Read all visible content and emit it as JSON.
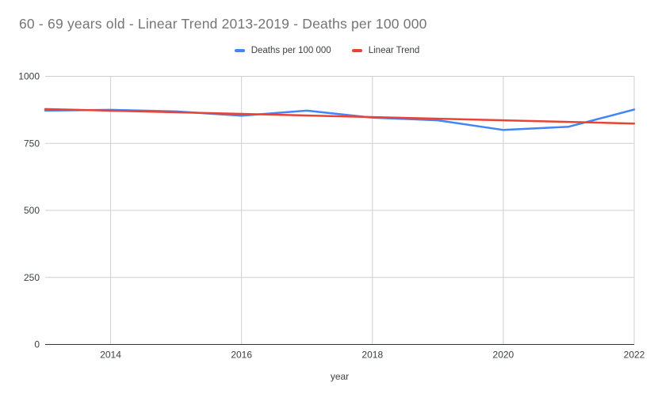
{
  "title": "60 - 69 years old - Linear Trend 2013-2019 - Deaths per 100 000",
  "legend": {
    "position": "top-center",
    "items": [
      {
        "label": "Deaths per 100 000",
        "color": "#4285F4"
      },
      {
        "label": "Linear Trend",
        "color": "#EA4335"
      }
    ]
  },
  "chart_data": {
    "type": "line",
    "title": "60 - 69 years old - Linear Trend 2013-2019 - Deaths per 100 000",
    "xlabel": "year",
    "ylabel": "",
    "x": [
      2013,
      2014,
      2015,
      2016,
      2017,
      2018,
      2019,
      2020,
      2021,
      2022
    ],
    "series": [
      {
        "name": "Deaths per 100 000",
        "color": "#4285F4",
        "values": [
          872,
          875,
          869,
          853,
          872,
          846,
          836,
          800,
          812,
          876
        ]
      },
      {
        "name": "Linear Trend",
        "color": "#EA4335",
        "x": [
          2013,
          2022
        ],
        "values": [
          878,
          824
        ]
      }
    ],
    "xlim": [
      2013,
      2022
    ],
    "ylim": [
      0,
      1000
    ],
    "y_ticks": [
      0,
      250,
      500,
      750,
      1000
    ],
    "x_ticks": [
      2014,
      2016,
      2018,
      2020,
      2022
    ],
    "grid": true,
    "legend_position": "top",
    "grid_color": "#cfcfcf",
    "axis_color": "#333333",
    "tick_color": "#3c4043",
    "title_color": "#757575",
    "background_color": "#ffffff"
  }
}
